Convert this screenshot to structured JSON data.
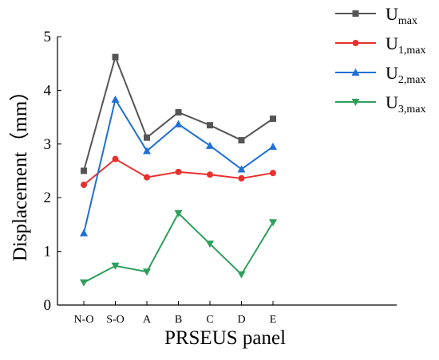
{
  "chart_data": {
    "type": "line",
    "categories": [
      "N-O",
      "S-O",
      "A",
      "B",
      "C",
      "D",
      "E"
    ],
    "xlabel": "PRSEUS panel",
    "ylabel": "Displacement（mm）",
    "ylim": [
      0,
      5
    ],
    "yticks": [
      0,
      1,
      2,
      3,
      4,
      5
    ],
    "grid": false,
    "legend_position": "top-right",
    "series": [
      {
        "name": "U",
        "name_sub": "max",
        "color": "#555555",
        "marker": "square",
        "values": [
          2.5,
          4.62,
          3.12,
          3.59,
          3.35,
          3.07,
          3.47
        ]
      },
      {
        "name": "U",
        "name_sub": "1,max",
        "color": "#e8312f",
        "marker": "circle",
        "values": [
          2.24,
          2.72,
          2.38,
          2.48,
          2.43,
          2.36,
          2.46
        ]
      },
      {
        "name": "U",
        "name_sub": "2,max",
        "color": "#1f6fd6",
        "marker": "triangle-up",
        "values": [
          1.34,
          3.83,
          2.87,
          3.37,
          2.97,
          2.53,
          2.95
        ]
      },
      {
        "name": "U",
        "name_sub": "3,max",
        "color": "#2e9e5b",
        "marker": "triangle-down",
        "values": [
          0.42,
          0.73,
          0.62,
          1.71,
          1.14,
          0.57,
          1.54
        ]
      }
    ]
  }
}
